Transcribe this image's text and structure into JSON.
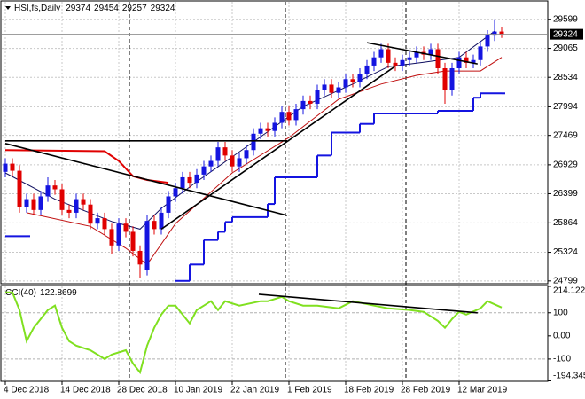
{
  "chart_data": {
    "type": "candlestick",
    "symbol": "HSI,fs,Daily",
    "categories": [
      "4 Dec 2018",
      null,
      null,
      null,
      null,
      null,
      null,
      null,
      "14 Dec 2018",
      null,
      null,
      null,
      null,
      null,
      null,
      null,
      "28 Dec 2018",
      null,
      null,
      null,
      null,
      null,
      null,
      null,
      "10 Jan 2019",
      null,
      null,
      null,
      null,
      null,
      null,
      null,
      "22 Jan 2019",
      null,
      null,
      null,
      null,
      null,
      null,
      null,
      "1 Feb 2019",
      null,
      null,
      null,
      null,
      null,
      null,
      null,
      "18 Feb 2019",
      null,
      null,
      null,
      null,
      null,
      null,
      null,
      "28 Feb 2019",
      null,
      null,
      null,
      null,
      null,
      null,
      null,
      "12 Mar 2019",
      null,
      null,
      null,
      null,
      null,
      null
    ],
    "open": [
      26800,
      26950,
      26820,
      26150,
      26300,
      26100,
      26350,
      26550,
      26480,
      26100,
      26050,
      26300,
      26200,
      25850,
      25950,
      25750,
      25450,
      25850,
      25700,
      25350,
      25000,
      25900,
      25750,
      26050,
      26350,
      26500,
      26700,
      26600,
      26750,
      26900,
      27000,
      27250,
      27100,
      26900,
      27050,
      27200,
      27500,
      27600,
      27550,
      27700,
      27900,
      27750,
      27950,
      28100,
      28050,
      28300,
      28400,
      28250,
      28350,
      28500,
      28450,
      28600,
      28750,
      28900,
      29050,
      28800,
      28750,
      28850,
      28900,
      29000,
      28950,
      29050,
      28700,
      28300,
      28700,
      28900,
      28800,
      28850,
      29100,
      29300,
      29374
    ],
    "high": [
      27050,
      27050,
      26920,
      26400,
      26400,
      26450,
      26700,
      26650,
      26580,
      26200,
      26400,
      26400,
      26300,
      26050,
      26050,
      25850,
      25950,
      25950,
      25800,
      25450,
      26000,
      26000,
      26150,
      26450,
      26600,
      26800,
      26800,
      26850,
      27000,
      27100,
      27350,
      27350,
      27200,
      27150,
      27300,
      27600,
      27700,
      27700,
      27800,
      28000,
      28000,
      28050,
      28200,
      28200,
      28400,
      28500,
      28500,
      28450,
      28600,
      28600,
      28700,
      28850,
      29000,
      29150,
      29150,
      28900,
      28950,
      29000,
      29100,
      29100,
      29150,
      29150,
      28800,
      28800,
      29000,
      29000,
      28950,
      29200,
      29400,
      29600,
      29454
    ],
    "low": [
      26700,
      26720,
      26050,
      26050,
      26000,
      26000,
      26250,
      26380,
      26000,
      25950,
      25950,
      26100,
      25750,
      25750,
      25650,
      25300,
      25350,
      25600,
      25250,
      24850,
      24900,
      25650,
      25650,
      25950,
      26250,
      26400,
      26500,
      26500,
      26650,
      26800,
      26900,
      27000,
      26800,
      26800,
      26950,
      27100,
      27400,
      27450,
      27450,
      27600,
      27650,
      27650,
      27850,
      27950,
      27950,
      28200,
      28150,
      28150,
      28250,
      28350,
      28350,
      28500,
      28650,
      28800,
      28700,
      28650,
      28650,
      28750,
      28800,
      28850,
      28850,
      28600,
      28050,
      28200,
      28600,
      28700,
      28700,
      28750,
      29000,
      29200,
      29257
    ],
    "close": [
      26950,
      26820,
      26150,
      26300,
      26100,
      26350,
      26550,
      26480,
      26100,
      26050,
      26300,
      26200,
      25850,
      25950,
      25750,
      25450,
      25850,
      25700,
      25350,
      25100,
      25900,
      25750,
      26050,
      26350,
      26500,
      26700,
      26600,
      26750,
      26900,
      27000,
      27250,
      27100,
      26900,
      27050,
      27200,
      27500,
      27600,
      27550,
      27700,
      27900,
      27750,
      27950,
      28100,
      28050,
      28300,
      28400,
      28250,
      28350,
      28500,
      28450,
      28600,
      28750,
      28900,
      29050,
      28800,
      28750,
      28850,
      28900,
      29000,
      28950,
      29050,
      28700,
      28300,
      28700,
      28900,
      28800,
      28850,
      29100,
      29300,
      29374,
      29324
    ],
    "up_color": "#1414e0",
    "down_color": "#e00000",
    "ylim": [
      24780,
      29920
    ],
    "yticks": [
      29599,
      29065,
      28534,
      27994,
      27469,
      26929,
      26399,
      25864,
      25324,
      24799
    ],
    "grid": true,
    "overlays": [
      {
        "color": "#e00000",
        "width": 2,
        "x": [
          0,
          14,
          16,
          18,
          20,
          23
        ],
        "values": [
          27200,
          27180,
          27000,
          26720,
          26650,
          26600
        ]
      },
      {
        "color": "#1414e0",
        "width": 2,
        "step": true,
        "x": [
          0,
          3,
          4,
          24,
          26,
          28,
          30,
          31,
          32,
          37,
          38,
          44,
          46,
          50,
          52,
          61,
          66,
          67,
          70
        ],
        "values": [
          25620,
          25620,
          null,
          24800,
          25100,
          25550,
          25700,
          25880,
          25970,
          26210,
          26700,
          27100,
          27520,
          27680,
          27870,
          27920,
          28160,
          28240,
          28240
        ]
      },
      {
        "color": "#c01010",
        "width": 1,
        "x": [
          3,
          12,
          17,
          20,
          24,
          32,
          40,
          47,
          53,
          58,
          62,
          67,
          70
        ],
        "values": [
          26050,
          25800,
          25400,
          25100,
          25850,
          26780,
          27430,
          28130,
          28410,
          28570,
          28650,
          28650,
          28900
        ]
      },
      {
        "color": "#101060",
        "width": 1,
        "x": [
          0,
          7,
          15,
          19,
          22,
          27,
          35,
          42,
          49,
          54,
          59,
          64,
          69
        ],
        "values": [
          26780,
          26300,
          25890,
          25750,
          26130,
          26620,
          27350,
          28000,
          28410,
          28730,
          28810,
          28900,
          29380
        ]
      }
    ],
    "trendlines": [
      {
        "x": [
          0,
          39.75
        ],
        "values": [
          27370,
          27370
        ]
      },
      {
        "x": [
          0,
          39.75
        ],
        "values": [
          27320,
          26000
        ]
      },
      {
        "x": [
          22,
          54.9
        ],
        "values": [
          25750,
          28730
        ]
      },
      {
        "x": [
          51,
          66.6
        ],
        "values": [
          29170,
          28780
        ]
      }
    ],
    "cci": {
      "type": "line",
      "label": "CCI(40)",
      "color": "#80e020",
      "x": [
        0,
        1,
        2,
        3,
        4,
        6,
        7,
        8,
        9,
        10,
        12,
        13,
        14,
        15,
        17,
        18,
        19,
        20,
        21,
        22,
        23,
        24,
        25,
        26,
        27,
        28,
        29,
        30,
        31,
        33,
        36,
        37,
        39,
        40,
        42,
        44,
        47,
        49,
        52,
        54,
        57,
        59,
        61,
        62,
        63,
        64,
        65,
        67,
        68,
        70
      ],
      "values": [
        188,
        188,
        112,
        -23,
        35,
        112,
        131,
        35,
        -23,
        -42,
        -62,
        -81,
        -100,
        -81,
        -62,
        -119,
        -158,
        -42,
        35,
        92,
        131,
        131,
        92,
        54,
        112,
        131,
        150,
        112,
        150,
        131,
        150,
        150,
        169,
        150,
        131,
        131,
        119,
        150,
        131,
        119,
        112,
        104,
        65,
        35,
        73,
        104,
        92,
        119,
        150,
        122.8699
      ],
      "y2lim": [
        -194.345,
        214.1228
      ],
      "y2ticks": [
        214.1228,
        100,
        {
          "value": 0,
          "label": "0.00"
        },
        -100,
        -194.345
      ],
      "trendlines": [
        {
          "x": [
            35.75,
            66.6
          ],
          "values": [
            180,
            100
          ]
        }
      ]
    }
  }
}
